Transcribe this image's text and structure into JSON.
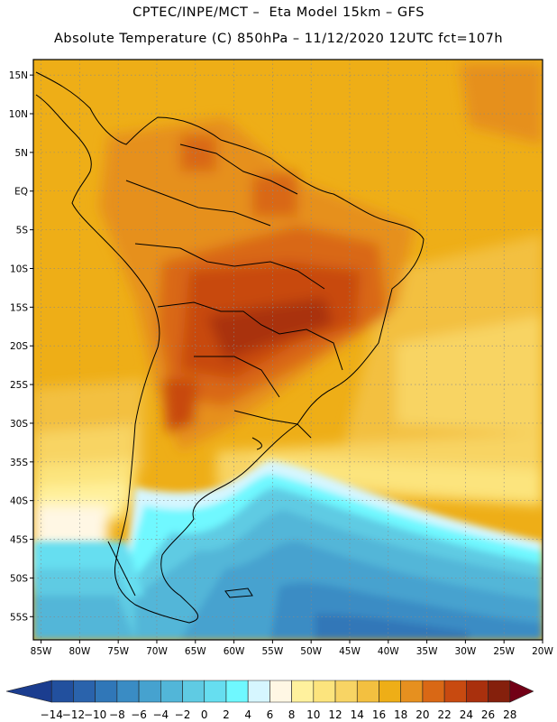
{
  "header": {
    "line1": "CPTEC/INPE/MCT –  Eta Model 15km – GFS",
    "line2": "Absolute Temperature (C) 850hPa – 11/12/2020 12UTC fct=107h"
  },
  "map": {
    "lat_labels": [
      "15N",
      "10N",
      "5N",
      "EQ",
      "5S",
      "10S",
      "15S",
      "20S",
      "25S",
      "30S",
      "35S",
      "40S",
      "45S",
      "50S",
      "55S"
    ],
    "lon_labels": [
      "85W",
      "80W",
      "75W",
      "70W",
      "65W",
      "60W",
      "55W",
      "50W",
      "45W",
      "40W",
      "35W",
      "30W",
      "25W",
      "20W"
    ],
    "lat_values": [
      15,
      10,
      5,
      0,
      -5,
      -10,
      -15,
      -20,
      -25,
      -30,
      -35,
      -40,
      -45,
      -50,
      -55
    ],
    "lon_values": [
      -85,
      -80,
      -75,
      -70,
      -65,
      -60,
      -55,
      -50,
      -45,
      -40,
      -35,
      -30,
      -25,
      -20
    ],
    "lon_range": [
      -86,
      -20
    ],
    "lat_range": [
      -58,
      17
    ],
    "gridlines": true
  },
  "colorbar": {
    "labels": [
      "-14",
      "-12",
      "-10",
      "-8",
      "-6",
      "-4",
      "-2",
      "0",
      "2",
      "4",
      "6",
      "8",
      "10",
      "12",
      "14",
      "16",
      "18",
      "20",
      "22",
      "24",
      "26",
      "28"
    ],
    "colors": [
      "#1b3d8f",
      "#22509e",
      "#2a63ac",
      "#3077b8",
      "#3a8cc4",
      "#46a2cf",
      "#52b6d8",
      "#5fcbe3",
      "#66def0",
      "#6ff8ff",
      "#d6f6ff",
      "#fff7e4",
      "#fff19d",
      "#fce47d",
      "#f8d464",
      "#f3c040",
      "#eeae17",
      "#e6901f",
      "#d96815",
      "#c84a10",
      "#a9300d",
      "#85200c",
      "#720016"
    ]
  }
}
